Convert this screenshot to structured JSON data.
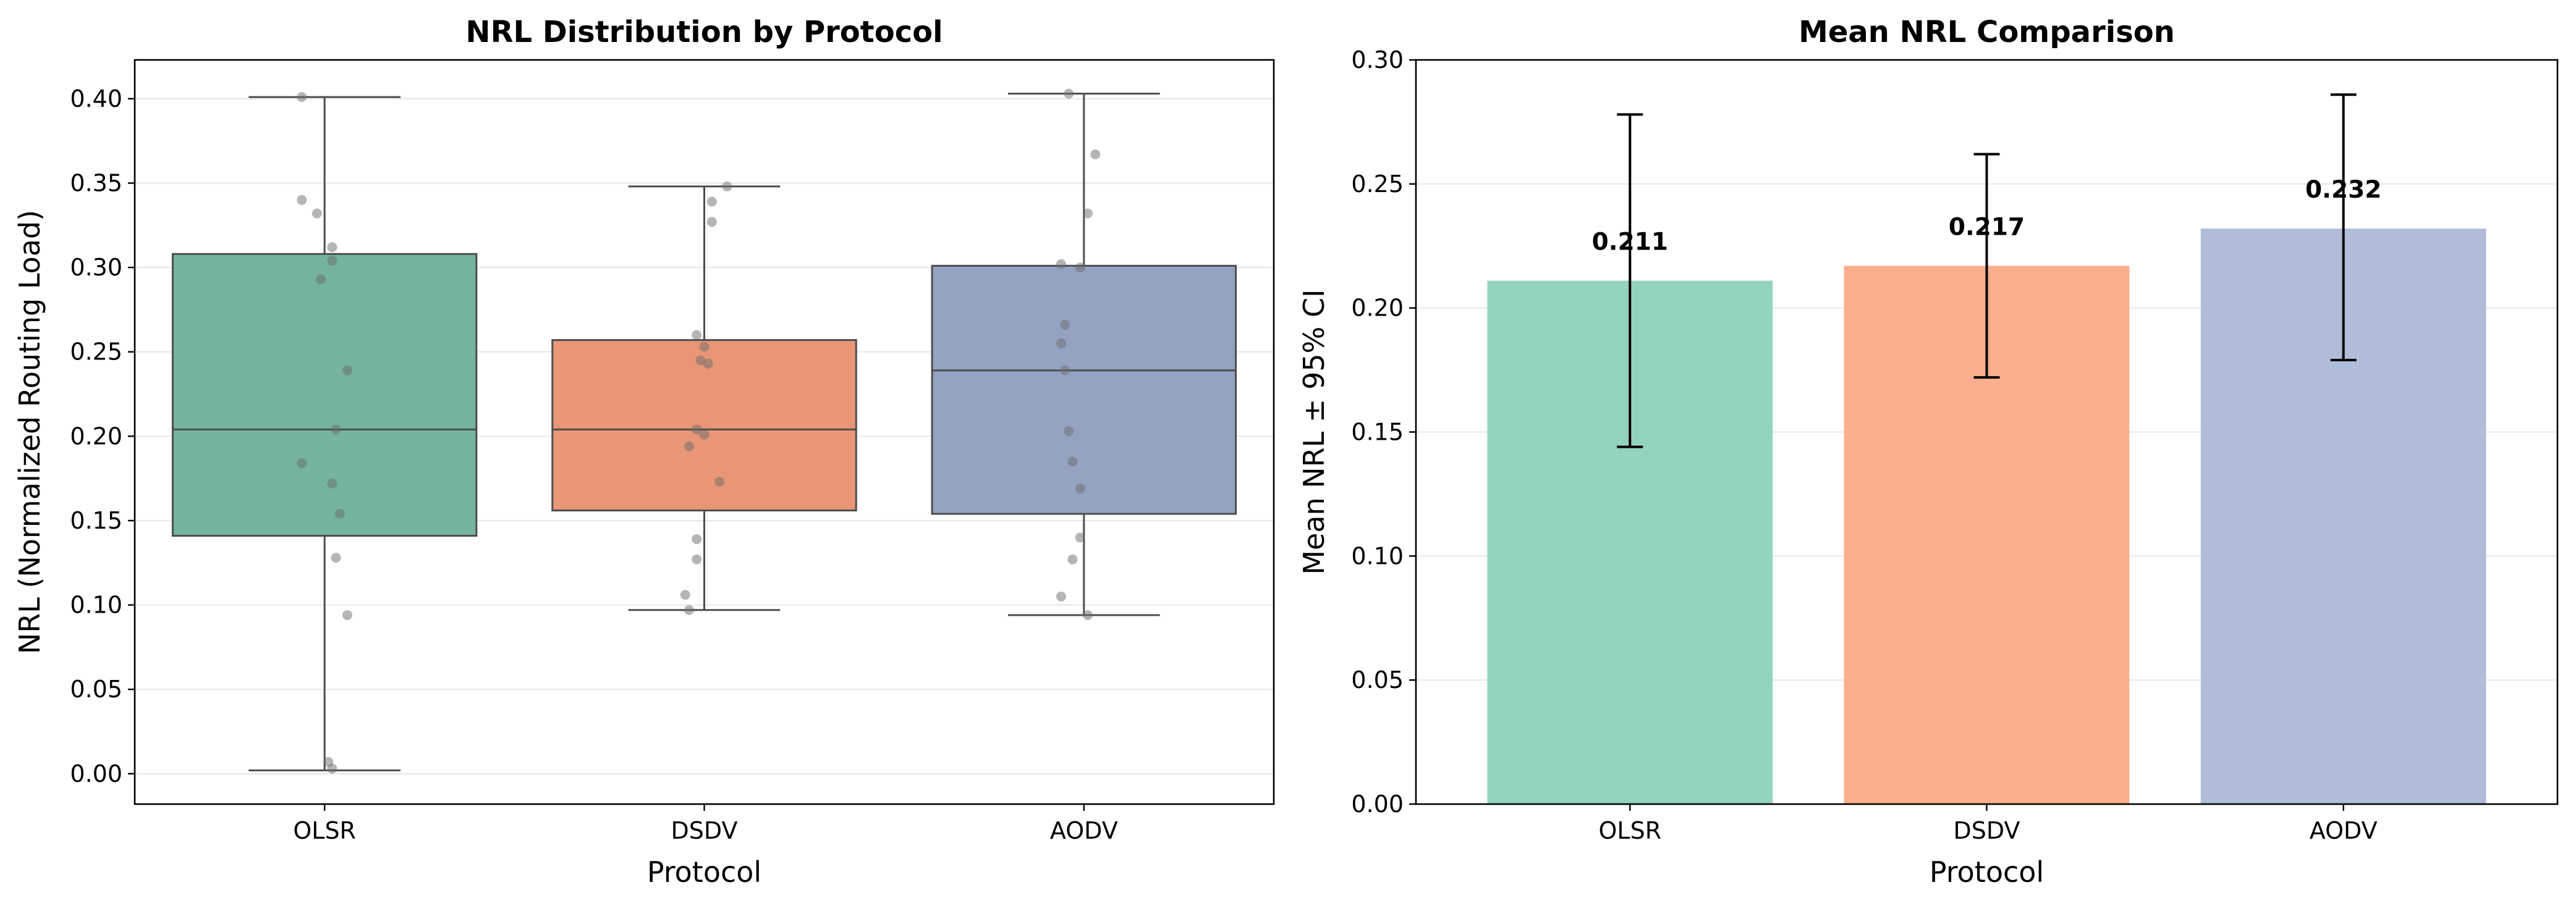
{
  "chart_data": [
    {
      "type": "box",
      "title": "NRL Distribution by Protocol",
      "xlabel": "Protocol",
      "ylabel": "NRL (Normalized Routing Load)",
      "ylim": [
        -0.018,
        0.423
      ],
      "yticks": [
        "0.00",
        "0.05",
        "0.10",
        "0.15",
        "0.20",
        "0.25",
        "0.30",
        "0.35",
        "0.40"
      ],
      "grid": "y",
      "categories": [
        "OLSR",
        "DSDV",
        "AODV"
      ],
      "colors": [
        "#73b3a0",
        "#e99677",
        "#94a3c2"
      ],
      "boxes": [
        {
          "name": "OLSR",
          "q1": 0.141,
          "median": 0.204,
          "q3": 0.308,
          "whisker_low": 0.002,
          "whisker_high": 0.401
        },
        {
          "name": "DSDV",
          "q1": 0.156,
          "median": 0.204,
          "q3": 0.257,
          "whisker_low": 0.097,
          "whisker_high": 0.348
        },
        {
          "name": "AODV",
          "q1": 0.154,
          "median": 0.239,
          "q3": 0.301,
          "whisker_low": 0.094,
          "whisker_high": 0.403
        }
      ],
      "points": [
        {
          "category": "OLSR",
          "values": [
            0.401,
            0.34,
            0.332,
            0.312,
            0.304,
            0.293,
            0.239,
            0.204,
            0.184,
            0.172,
            0.154,
            0.128,
            0.094,
            0.007,
            0.003
          ],
          "jitter": [
            -0.06,
            -0.06,
            -0.02,
            0.02,
            0.02,
            -0.01,
            0.06,
            0.03,
            -0.06,
            0.02,
            0.04,
            0.03,
            0.06,
            0.01,
            0.02
          ]
        },
        {
          "category": "DSDV",
          "values": [
            0.348,
            0.339,
            0.327,
            0.26,
            0.253,
            0.245,
            0.243,
            0.204,
            0.201,
            0.194,
            0.173,
            0.139,
            0.127,
            0.106,
            0.097
          ],
          "jitter": [
            0.06,
            0.02,
            0.02,
            -0.02,
            0.0,
            -0.01,
            0.01,
            -0.02,
            0.0,
            -0.04,
            0.04,
            -0.02,
            -0.02,
            -0.05,
            -0.04
          ]
        },
        {
          "category": "AODV",
          "values": [
            0.403,
            0.367,
            0.332,
            0.302,
            0.3,
            0.266,
            0.255,
            0.239,
            0.203,
            0.185,
            0.169,
            0.14,
            0.127,
            0.105,
            0.094
          ],
          "jitter": [
            -0.04,
            0.03,
            0.01,
            -0.06,
            -0.01,
            -0.05,
            -0.06,
            -0.05,
            -0.04,
            -0.03,
            -0.01,
            -0.01,
            -0.03,
            -0.06,
            0.01
          ]
        }
      ]
    },
    {
      "type": "bar",
      "title": "Mean NRL Comparison",
      "xlabel": "Protocol",
      "ylabel": "Mean NRL ± 95% CI",
      "ylim": [
        0,
        0.3
      ],
      "yticks": [
        "0.00",
        "0.05",
        "0.10",
        "0.15",
        "0.20",
        "0.25",
        "0.30"
      ],
      "grid": "y",
      "categories": [
        "OLSR",
        "DSDV",
        "AODV"
      ],
      "values": [
        0.211,
        0.217,
        0.232
      ],
      "value_labels": [
        "0.211",
        "0.217",
        "0.232"
      ],
      "ci_low": [
        0.144,
        0.172,
        0.179
      ],
      "ci_high": [
        0.278,
        0.262,
        0.286
      ],
      "colors": [
        "#93d4bf",
        "#fbae8e",
        "#afbddb"
      ]
    }
  ]
}
